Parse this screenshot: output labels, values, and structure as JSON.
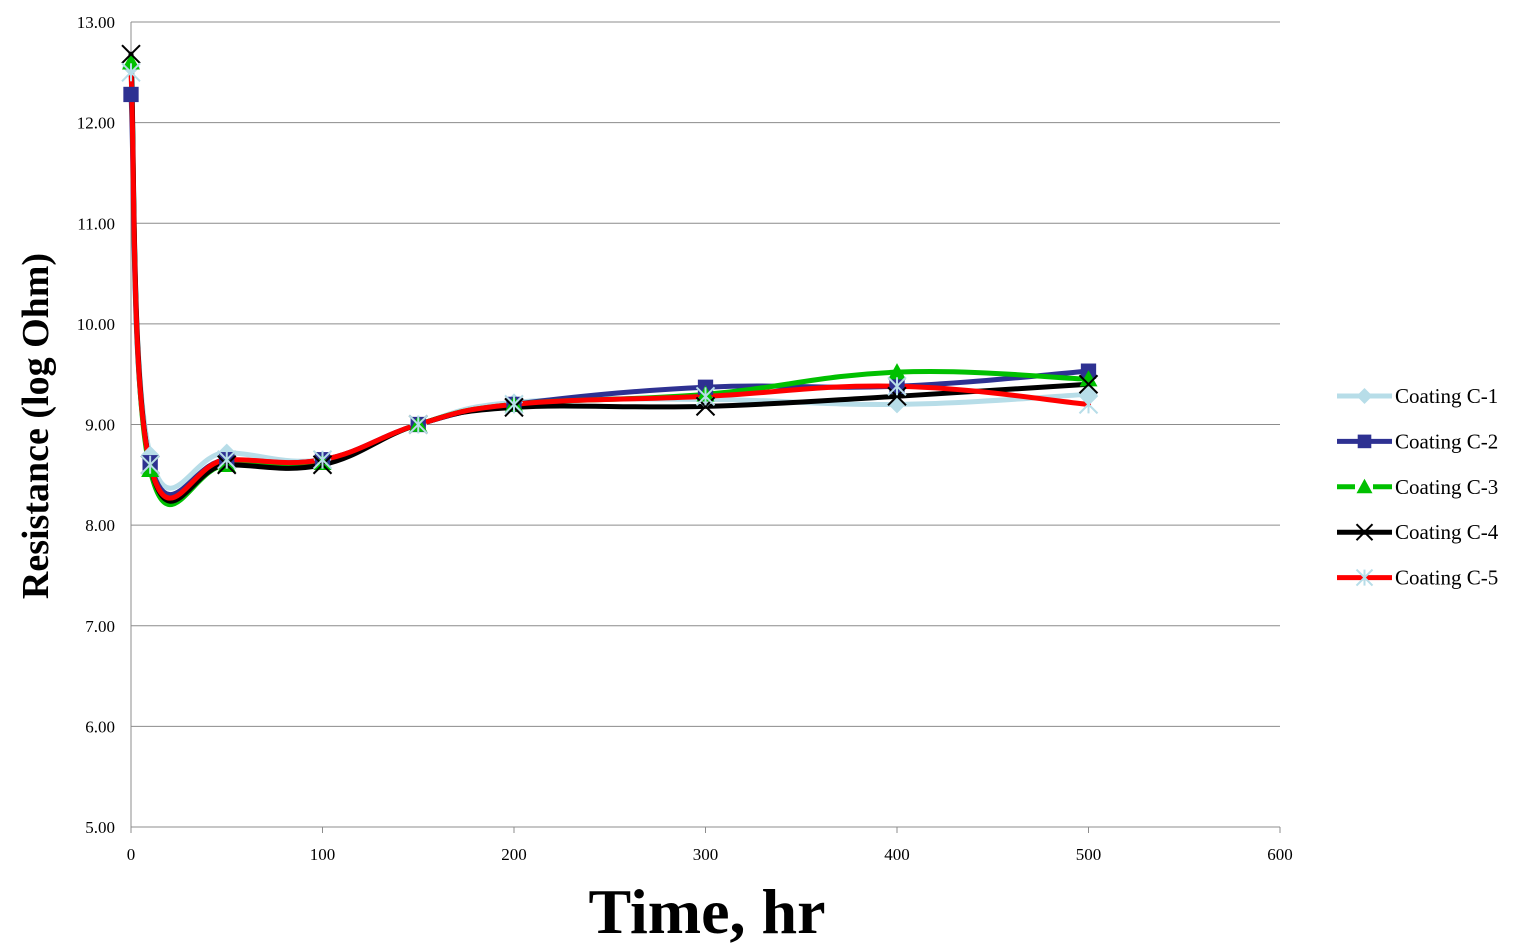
{
  "chart_data": {
    "type": "line",
    "title": "",
    "xlabel": "Time, hr",
    "ylabel": "Resistance (log Ohm)",
    "xlim": [
      0,
      600
    ],
    "ylim": [
      5,
      13
    ],
    "x_ticks": [
      "0",
      "100",
      "200",
      "300",
      "400",
      "500",
      "600"
    ],
    "y_ticks": [
      "5.00",
      "6.00",
      "7.00",
      "8.00",
      "9.00",
      "10.00",
      "11.00",
      "12.00",
      "13.00"
    ],
    "grid": "horizontal",
    "legend_position": "right",
    "smooth": true,
    "x": [
      0,
      10,
      50,
      100,
      150,
      200,
      300,
      400,
      500
    ],
    "series": [
      {
        "name": "Coating C-1",
        "color": "#b7dde8",
        "marker": "diamond",
        "values": [
          12.55,
          8.7,
          8.72,
          8.65,
          9.0,
          9.22,
          9.25,
          9.2,
          9.3
        ]
      },
      {
        "name": "Coating C-2",
        "color": "#2e3192",
        "marker": "square",
        "values": [
          12.28,
          8.62,
          8.65,
          8.65,
          9.0,
          9.2,
          9.37,
          9.38,
          9.53
        ]
      },
      {
        "name": "Coating C-3",
        "color": "#00c000",
        "marker": "triangle",
        "values": [
          12.6,
          8.55,
          8.6,
          8.62,
          9.0,
          9.2,
          9.3,
          9.52,
          9.45
        ]
      },
      {
        "name": "Coating C-4",
        "color": "#000000",
        "marker": "x",
        "values": [
          12.68,
          8.6,
          8.6,
          8.6,
          9.0,
          9.17,
          9.18,
          9.28,
          9.4
        ]
      },
      {
        "name": "Coating C-5",
        "color": "#ff0000",
        "marker": "star",
        "values": [
          12.5,
          8.6,
          8.65,
          8.65,
          9.0,
          9.2,
          9.28,
          9.38,
          9.2
        ]
      }
    ]
  }
}
